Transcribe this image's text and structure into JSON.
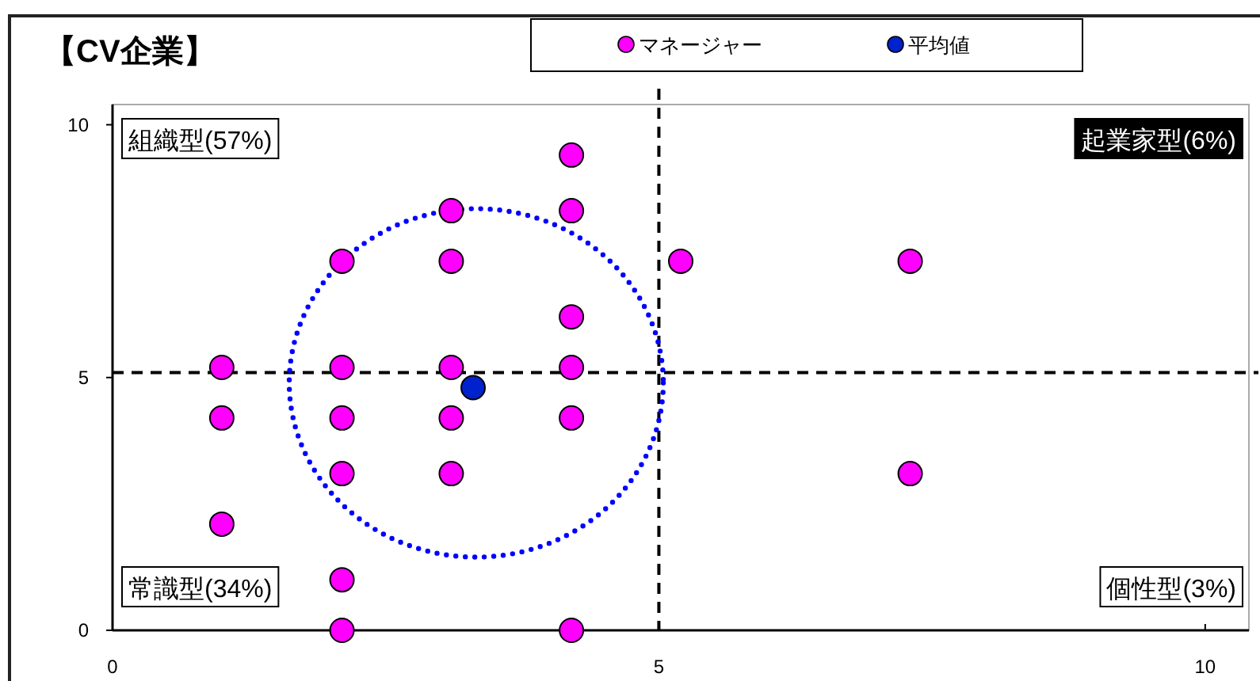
{
  "chart_data": {
    "type": "scatter",
    "title": "【CV企業】",
    "xlim": [
      0,
      10.4
    ],
    "ylim": [
      0,
      10.4
    ],
    "xticks": [
      0,
      5,
      10
    ],
    "yticks": [
      0,
      5,
      10
    ],
    "grid": false,
    "legend": "top",
    "marker": "circle",
    "series": [
      {
        "name": "マネージャー",
        "color": "#ff00ff",
        "x": [
          1.0,
          1.0,
          1.0,
          2.1,
          2.1,
          2.1,
          2.1,
          2.1,
          2.1,
          3.1,
          3.1,
          3.1,
          3.1,
          3.1,
          4.2,
          4.2,
          4.2,
          4.2,
          4.2,
          4.2,
          5.2,
          7.3,
          7.3
        ],
        "values": [
          5.2,
          4.2,
          2.1,
          7.3,
          5.2,
          4.2,
          3.1,
          1.0,
          0,
          8.3,
          7.3,
          5.2,
          4.2,
          3.1,
          9.4,
          8.3,
          6.2,
          5.2,
          4.2,
          0,
          7.3,
          7.3,
          3.1
        ]
      },
      {
        "name": "平均値",
        "color": "#0022cc",
        "x": [
          3.3
        ],
        "values": [
          4.8
        ]
      }
    ],
    "ref_lines": [
      {
        "axis": "x",
        "value": 5,
        "line_style": "dashed",
        "color": "#000000"
      },
      {
        "axis": "y",
        "value": 5.1,
        "line_style": "dashed",
        "color": "#000000"
      }
    ],
    "annotations": [
      "組織型(57%)",
      "起業家型(6%)",
      "常識型(34%)",
      "個性型(3%)"
    ]
  }
}
